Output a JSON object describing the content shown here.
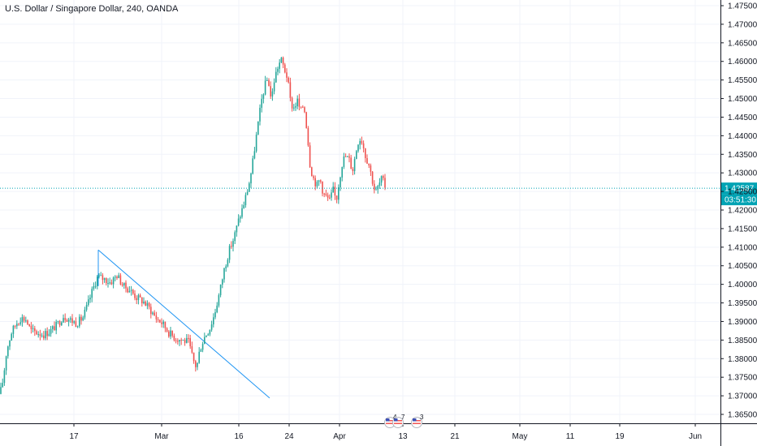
{
  "title": "U.S. Dollar / Singapore Dollar, 240, OANDA",
  "current_price_label": "1.42587",
  "countdown_label": "03:51:30",
  "event_badges": [
    {
      "name": "us-flag-event-badge-1",
      "count": "4"
    },
    {
      "name": "us-flag-event-badge-2",
      "count": "7"
    },
    {
      "name": "us-flag-event-badge-3",
      "count": "3"
    }
  ],
  "colors": {
    "up": "#26a69a",
    "down": "#ef5350",
    "grid": "#f0f3fa",
    "axis": "#131722",
    "price_line": "#00a3b4",
    "trendline": "#2196f3"
  },
  "chart_data": {
    "type": "candlestick",
    "symbol": "U.S. Dollar / Singapore Dollar",
    "interval": "240",
    "source": "OANDA",
    "ylim": [
      1.3625,
      1.4775
    ],
    "y_ticks": [
      "1.36500",
      "1.37000",
      "1.37500",
      "1.38000",
      "1.38500",
      "1.39000",
      "1.39500",
      "1.40000",
      "1.40500",
      "1.41000",
      "1.41500",
      "1.42000",
      "1.42500",
      "1.43000",
      "1.43500",
      "1.44000",
      "1.44500",
      "1.45000",
      "1.45500",
      "1.46000",
      "1.46500",
      "1.47000",
      "1.47500"
    ],
    "x_ticks": [
      "17",
      "Mar",
      "16",
      "24",
      "Apr",
      "13",
      "21",
      "May",
      "11",
      "19",
      "Jun"
    ],
    "current_price": 1.42587,
    "path": [
      [
        0,
        1.3705
      ],
      [
        4,
        1.3745
      ],
      [
        8,
        1.382
      ],
      [
        14,
        1.387
      ],
      [
        20,
        1.3895
      ],
      [
        26,
        1.391
      ],
      [
        32,
        1.3905
      ],
      [
        38,
        1.3875
      ],
      [
        46,
        1.387
      ],
      [
        54,
        1.3865
      ],
      [
        62,
        1.3875
      ],
      [
        70,
        1.389
      ],
      [
        78,
        1.3915
      ],
      [
        86,
        1.3905
      ],
      [
        94,
        1.3895
      ],
      [
        102,
        1.391
      ],
      [
        108,
        1.3945
      ],
      [
        114,
        1.3985
      ],
      [
        120,
        1.402
      ],
      [
        128,
        1.4015
      ],
      [
        136,
        1.4005
      ],
      [
        144,
        1.4025
      ],
      [
        152,
        1.3995
      ],
      [
        160,
        1.3985
      ],
      [
        168,
        1.3965
      ],
      [
        176,
        1.3955
      ],
      [
        184,
        1.3935
      ],
      [
        192,
        1.391
      ],
      [
        200,
        1.3895
      ],
      [
        208,
        1.387
      ],
      [
        216,
        1.3855
      ],
      [
        224,
        1.385
      ],
      [
        232,
        1.3845
      ],
      [
        238,
        1.3795
      ],
      [
        242,
        1.3775
      ],
      [
        246,
        1.3825
      ],
      [
        252,
        1.386
      ],
      [
        258,
        1.388
      ],
      [
        264,
        1.392
      ],
      [
        270,
        1.3975
      ],
      [
        276,
        1.404
      ],
      [
        282,
        1.409
      ],
      [
        288,
        1.4125
      ],
      [
        294,
        1.4175
      ],
      [
        300,
        1.4215
      ],
      [
        306,
        1.4265
      ],
      [
        310,
        1.431
      ],
      [
        314,
        1.4375
      ],
      [
        318,
        1.4435
      ],
      [
        322,
        1.4495
      ],
      [
        326,
        1.4535
      ],
      [
        330,
        1.4555
      ],
      [
        334,
        1.4495
      ],
      [
        338,
        1.4555
      ],
      [
        342,
        1.4585
      ],
      [
        346,
        1.4605
      ],
      [
        350,
        1.458
      ],
      [
        354,
        1.4555
      ],
      [
        358,
        1.4485
      ],
      [
        362,
        1.4475
      ],
      [
        366,
        1.4495
      ],
      [
        370,
        1.4465
      ],
      [
        374,
        1.4485
      ],
      [
        378,
        1.4415
      ],
      [
        382,
        1.4315
      ],
      [
        386,
        1.4285
      ],
      [
        390,
        1.4265
      ],
      [
        394,
        1.4285
      ],
      [
        398,
        1.4245
      ],
      [
        402,
        1.4235
      ],
      [
        406,
        1.4225
      ],
      [
        410,
        1.4255
      ],
      [
        414,
        1.4225
      ],
      [
        418,
        1.4285
      ],
      [
        422,
        1.4335
      ],
      [
        426,
        1.4345
      ],
      [
        430,
        1.4335
      ],
      [
        434,
        1.4305
      ],
      [
        438,
        1.4355
      ],
      [
        442,
        1.4395
      ],
      [
        446,
        1.4385
      ],
      [
        450,
        1.4345
      ],
      [
        454,
        1.4325
      ],
      [
        458,
        1.4285
      ],
      [
        462,
        1.4245
      ],
      [
        466,
        1.4265
      ],
      [
        470,
        1.4285
      ],
      [
        474,
        1.4265
      ]
    ],
    "trendline": {
      "x": [
        121,
        332
      ],
      "y": [
        1.40925,
        1.3694
      ]
    },
    "anchor_line": {
      "x": [
        121,
        121
      ],
      "y": [
        1.40925,
        1.3995
      ]
    }
  }
}
